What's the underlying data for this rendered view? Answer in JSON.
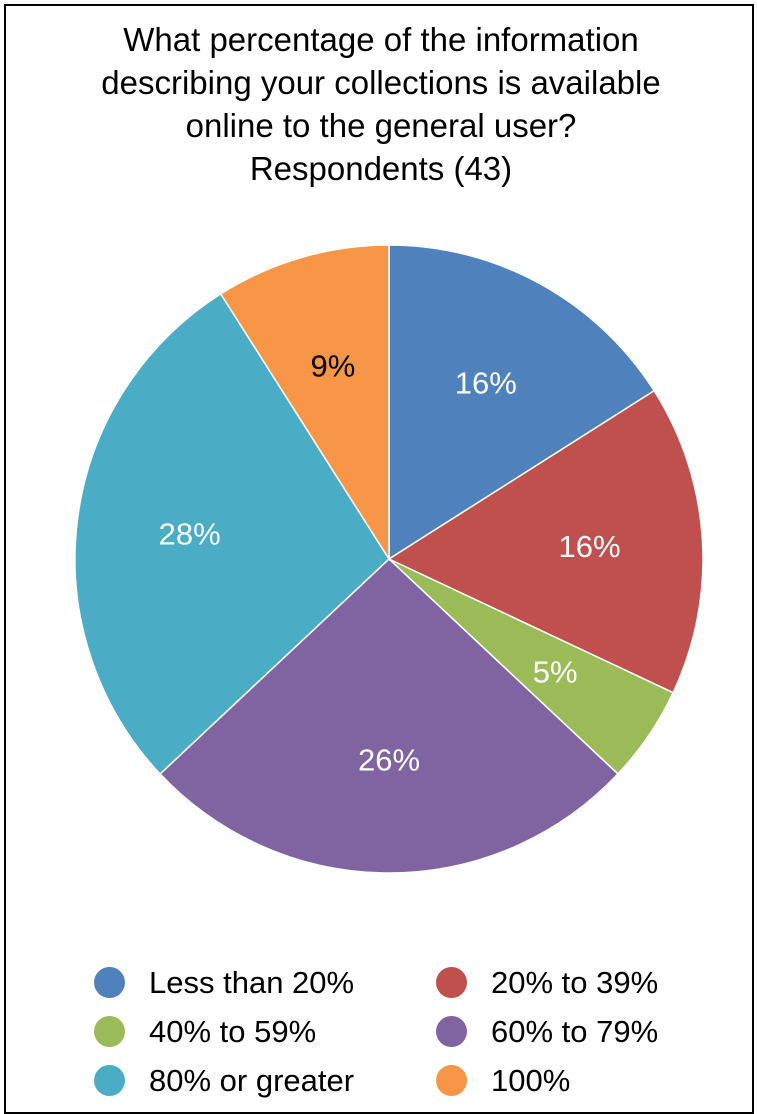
{
  "chart_data": {
    "type": "pie",
    "title_lines": [
      "What percentage of the information",
      "describing your collections is available",
      "online to the general user?",
      "Respondents (43)"
    ],
    "slices": [
      {
        "label": "Less than 20%",
        "value": 16,
        "data_label": "16%",
        "color": "#4F81BD"
      },
      {
        "label": "20% to 39%",
        "value": 16,
        "data_label": "16%",
        "color": "#C0504D"
      },
      {
        "label": "40% to 59%",
        "value": 5,
        "data_label": "5%",
        "color": "#9BBB59"
      },
      {
        "label": "60% to 79%",
        "value": 26,
        "data_label": "26%",
        "color": "#8064A2"
      },
      {
        "label": "80% or greater",
        "value": 28,
        "data_label": "28%",
        "color": "#4BACC6"
      },
      {
        "label": "100%",
        "value": 9,
        "data_label": "9%",
        "color": "#F79646"
      }
    ],
    "start": "top",
    "direction": "clockwise",
    "legend_position": "bottom"
  }
}
